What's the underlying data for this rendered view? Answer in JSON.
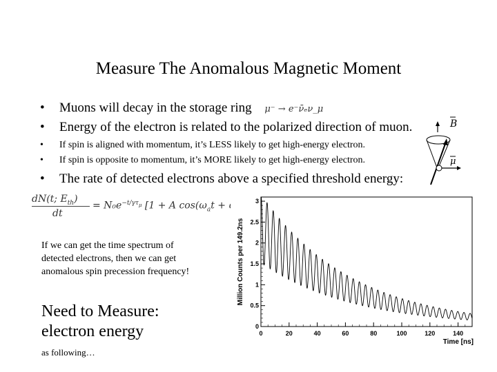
{
  "title": "Measure The Anomalous Magnetic Moment",
  "bullets": {
    "b1": "Muons will decay in the storage ring",
    "b1_formula": "μ⁻ → e⁻ν̄ₑν_μ",
    "b2": "Energy of the electron is related to the polarized direction of muon.",
    "b3": "If spin is aligned with momentum, it’s LESS likely to get high-energy electron.",
    "b4": "If spin is opposite to momentum, it’s MORE likely to get high-energy electron.",
    "b5": "The rate of detected electrons above a specified threshold energy:"
  },
  "formula": {
    "numerator": "dN(t; E",
    "numerator_sub": "th",
    "numerator_close": ")",
    "denominator": "dt",
    "rhs": "= N₀e",
    "rhs_exp": "−t/γτ",
    "rhs_exp_sub": "μ",
    "rhs_tail": "[1 + A cos(ω",
    "rhs_tail_sub": "a",
    "rhs_tail_close": "t + φ)]"
  },
  "diagram": {
    "b_label": "B",
    "mu_label": "μ"
  },
  "paragraph": "If we can get the time spectrum of detected electrons, then we can get anomalous spin precession frequency!",
  "need": "Need to Measure: electron energy",
  "as_following": "as following…",
  "chart_data": {
    "type": "line",
    "ylabel": "Million Counts per 149.2ns",
    "xlabel": "Time [ns]",
    "xlim": [
      0,
      150
    ],
    "ylim": [
      0,
      3.1
    ],
    "x_ticks": [
      "0",
      "20",
      "40",
      "60",
      "80",
      "100",
      "120",
      "140"
    ],
    "y_ticks": [
      "0",
      "0.5",
      "1",
      "1.5",
      "2",
      "2.5",
      "3"
    ],
    "model": {
      "N0": 2.35,
      "tau": 64.4,
      "A": 0.35,
      "period": 4.37,
      "phase": 0.0
    },
    "color": "#000000"
  }
}
